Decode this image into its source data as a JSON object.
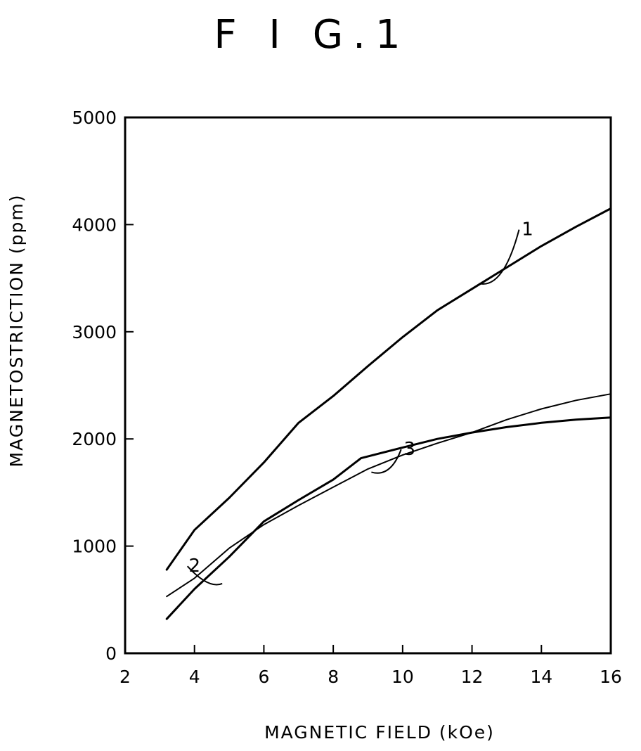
{
  "chart_data": {
    "type": "line",
    "title": "F I G.1",
    "xlabel": "MAGNETIC FIELD (kOe)",
    "ylabel": "MAGNETOSTRICTION (ppm)",
    "xlim": [
      2,
      16
    ],
    "ylim": [
      0,
      5000
    ],
    "xticks": [
      2,
      4,
      6,
      8,
      10,
      12,
      14,
      16
    ],
    "yticks": [
      0,
      1000,
      2000,
      3000,
      4000,
      5000
    ],
    "grid": false,
    "legend": "none",
    "series": [
      {
        "label": "1",
        "width": 3,
        "points": [
          [
            3.2,
            780
          ],
          [
            4,
            1150
          ],
          [
            5,
            1450
          ],
          [
            6,
            1780
          ],
          [
            7,
            2150
          ],
          [
            8,
            2400
          ],
          [
            9,
            2680
          ],
          [
            10,
            2950
          ],
          [
            11,
            3200
          ],
          [
            12,
            3400
          ],
          [
            13,
            3600
          ],
          [
            14,
            3800
          ],
          [
            15,
            3980
          ],
          [
            16,
            4150
          ]
        ]
      },
      {
        "label": "2",
        "width": 3,
        "points": [
          [
            3.2,
            320
          ],
          [
            4,
            600
          ],
          [
            5,
            900
          ],
          [
            6,
            1230
          ],
          [
            7,
            1430
          ],
          [
            8,
            1620
          ],
          [
            8.8,
            1820
          ],
          [
            10,
            1920
          ],
          [
            11,
            2000
          ],
          [
            12,
            2060
          ],
          [
            13,
            2110
          ],
          [
            14,
            2150
          ],
          [
            15,
            2180
          ],
          [
            16,
            2200
          ]
        ]
      },
      {
        "label": "3",
        "width": 2,
        "points": [
          [
            3.2,
            530
          ],
          [
            4,
            700
          ],
          [
            5,
            980
          ],
          [
            6,
            1200
          ],
          [
            7,
            1380
          ],
          [
            8,
            1550
          ],
          [
            9,
            1720
          ],
          [
            10,
            1850
          ],
          [
            11,
            1960
          ],
          [
            12,
            2060
          ],
          [
            13,
            2180
          ],
          [
            14,
            2280
          ],
          [
            15,
            2360
          ],
          [
            16,
            2420
          ]
        ]
      }
    ],
    "annotations": [
      {
        "text": "1",
        "series": "1",
        "label_at": [
          13.6,
          3900
        ],
        "leader_to": [
          12.2,
          3450
        ]
      },
      {
        "text": "2",
        "series": "2",
        "label_at": [
          4.0,
          760
        ],
        "leader_to": [
          4.8,
          650
        ]
      },
      {
        "text": "3",
        "series": "3",
        "label_at": [
          10.2,
          1850
        ],
        "leader_to": [
          9.1,
          1690
        ]
      }
    ]
  }
}
